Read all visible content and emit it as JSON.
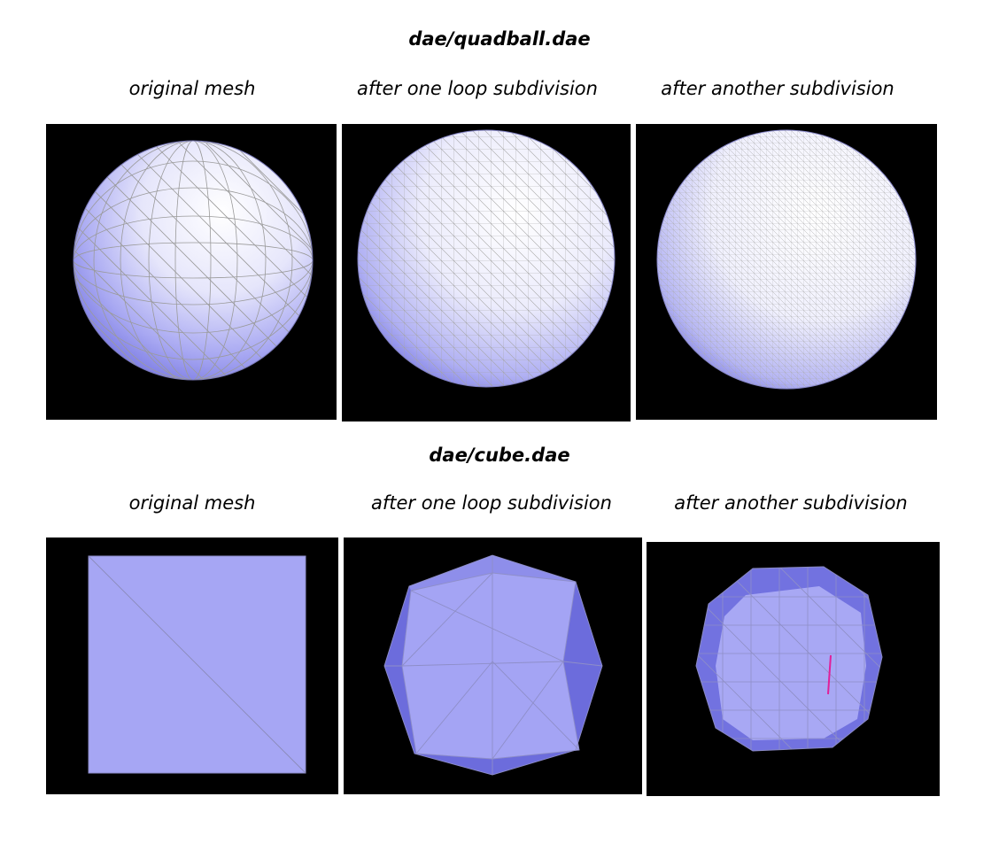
{
  "sections": [
    {
      "title": "dae/quadball.dae",
      "captions": [
        "original mesh",
        "after one loop subdivision",
        "after another subdivision"
      ]
    },
    {
      "title": "dae/cube.dae",
      "captions": [
        "original mesh",
        "after one loop subdivision",
        "after another subdivision"
      ]
    }
  ],
  "colors": {
    "background": "#000000",
    "mesh_fill": "#a3a3f5",
    "mesh_shadow": "#6f6fe0",
    "highlight": "#ffffff",
    "edge": "#9a9a9a",
    "selected_edge": "#e0209a"
  }
}
